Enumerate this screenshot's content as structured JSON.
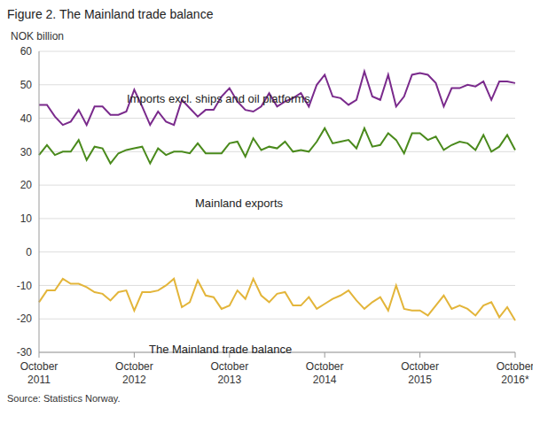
{
  "chart_data": {
    "type": "line",
    "title": "Figure 2. The Mainland trade balance",
    "y_label": "NOK billion",
    "source": "Source: Statistics Norway.",
    "categories": [
      "October 2011",
      null,
      null,
      null,
      null,
      null,
      null,
      null,
      null,
      null,
      null,
      null,
      "October 2012",
      null,
      null,
      null,
      null,
      null,
      null,
      null,
      null,
      null,
      null,
      null,
      "October 2013",
      null,
      null,
      null,
      null,
      null,
      null,
      null,
      null,
      null,
      null,
      null,
      "October 2014",
      null,
      null,
      null,
      null,
      null,
      null,
      null,
      null,
      null,
      null,
      null,
      "October 2015",
      null,
      null,
      null,
      null,
      null,
      null,
      null,
      null,
      null,
      null,
      null,
      "October 2016*"
    ],
    "series": [
      {
        "name": "Imports excl. ships and oil platforms",
        "color": "#7a2a8c",
        "values": [
          44,
          44,
          40.5,
          38,
          39,
          42.5,
          38,
          43.5,
          43.5,
          41,
          41,
          42,
          48.5,
          43.5,
          38,
          42,
          39,
          38,
          45.5,
          43,
          40.5,
          42.5,
          42.5,
          46.5,
          49,
          45,
          42.5,
          42,
          43.5,
          47.5,
          43.5,
          45,
          46,
          47.5,
          43.5,
          50,
          53,
          46.5,
          46,
          44,
          45.5,
          54,
          46.5,
          45.5,
          53,
          43.5,
          46.5,
          53,
          53.5,
          53,
          50.5,
          43.5,
          49,
          49,
          50,
          49.5,
          51,
          45.5,
          51,
          51,
          50.5
        ]
      },
      {
        "name": "Mainland exports",
        "color": "#4a8a1c",
        "values": [
          29,
          32,
          29,
          30,
          30,
          33.5,
          27.5,
          31.5,
          31,
          26.5,
          29.5,
          30.5,
          31,
          31.5,
          26.5,
          31,
          29,
          30,
          30,
          29.5,
          32.5,
          29.5,
          29.5,
          29.5,
          32.5,
          33,
          28.5,
          34,
          30.5,
          31.5,
          31,
          33,
          30,
          30.5,
          30,
          33,
          37,
          32.5,
          33,
          33.5,
          31,
          37,
          31.5,
          32,
          35.5,
          33.5,
          29.5,
          35.5,
          35.5,
          33.5,
          34.5,
          30.5,
          32,
          33,
          32.5,
          30.5,
          35,
          30,
          31.5,
          35,
          30.5
        ]
      },
      {
        "name": "The Mainland trade balance",
        "color": "#e3b53a",
        "values": [
          -15,
          -11.5,
          -11.5,
          -8,
          -9.5,
          -9.5,
          -10.5,
          -12,
          -12.5,
          -14.5,
          -12,
          -11.5,
          -17.5,
          -12,
          -12,
          -11.5,
          -10,
          -8,
          -16.5,
          -15,
          -8.5,
          -13,
          -13.5,
          -17,
          -16,
          -11.5,
          -14,
          -8,
          -13,
          -15,
          -12.5,
          -12,
          -16,
          -16,
          -13.5,
          -17,
          -15.5,
          -14,
          -13,
          -11.5,
          -14.5,
          -17,
          -15,
          -13.5,
          -17.5,
          -10,
          -17,
          -17.5,
          -17.5,
          -19,
          -16,
          -13,
          -17,
          -16,
          -17,
          -19,
          -16,
          -15,
          -19.5,
          -16.5,
          -20.5
        ]
      }
    ],
    "ylim": [
      -30,
      60
    ],
    "yticks": [
      -30,
      -20,
      -10,
      0,
      10,
      20,
      30,
      40,
      50,
      60
    ],
    "grid": true
  }
}
